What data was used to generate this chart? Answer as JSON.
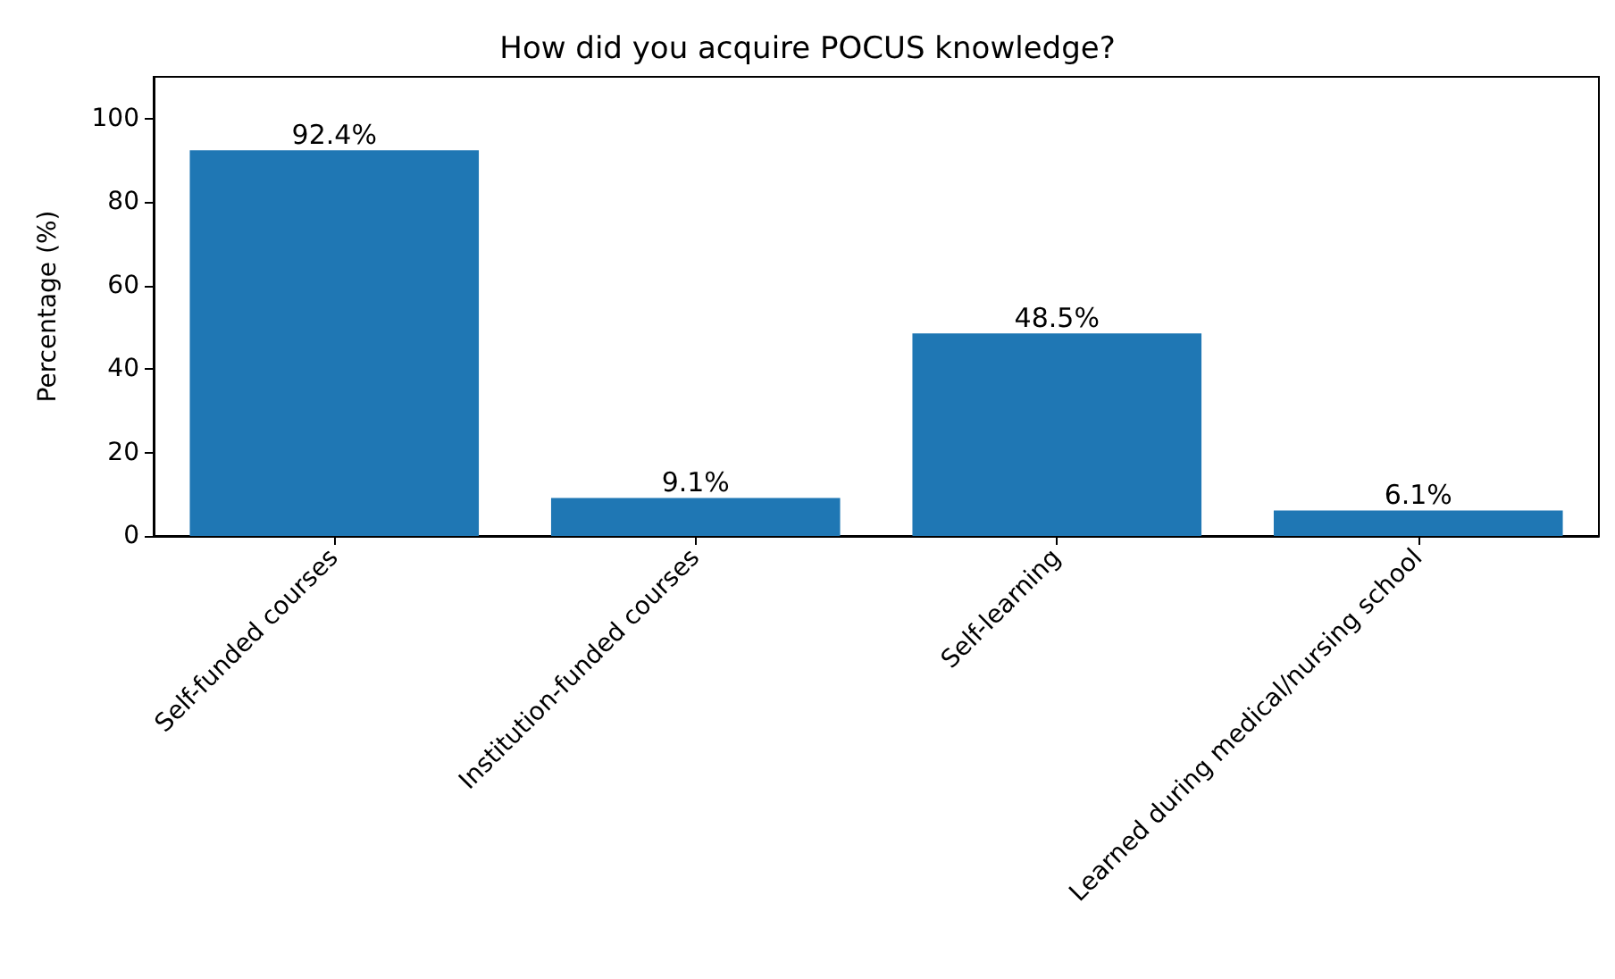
{
  "chart_data": {
    "type": "bar",
    "title": "How did you acquire POCUS knowledge?",
    "ylabel": "Percentage (%)",
    "categories": [
      "Self-funded courses",
      "Institution-funded courses",
      "Self-learning",
      "Learned during medical/nursing school"
    ],
    "values": [
      92.4,
      9.1,
      48.5,
      6.1
    ],
    "value_labels": [
      "92.4%",
      "9.1%",
      "48.5%",
      "6.1%"
    ],
    "color": "#1f77b4",
    "ylim": [
      0,
      110
    ],
    "yticks": [
      0,
      20,
      40,
      60,
      80,
      100
    ]
  }
}
